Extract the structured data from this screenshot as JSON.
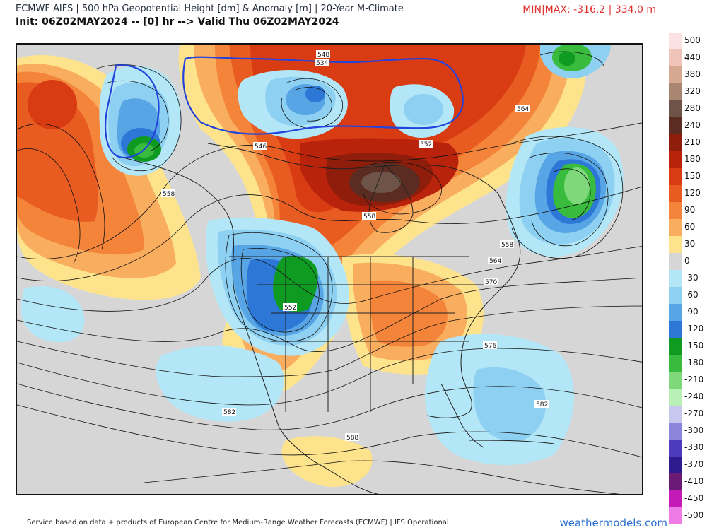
{
  "header": {
    "title": "ECMWF AIFS | 500 hPa Geopotential Height [dm] & Anomaly [m] | 20-Year M-Climate",
    "subtitle": "Init: 06Z02MAY2024 -- [0] hr --> Valid Thu 06Z02MAY2024",
    "minmax": "MIN|MAX: -316.2 | 334.0 m"
  },
  "legend": {
    "levels": [
      {
        "label": "500",
        "color": "#fbe1e1"
      },
      {
        "label": "440",
        "color": "#f0c4b8"
      },
      {
        "label": "380",
        "color": "#d5a88f"
      },
      {
        "label": "320",
        "color": "#a88671"
      },
      {
        "label": "280",
        "color": "#6e5448"
      },
      {
        "label": "240",
        "color": "#5b2d22"
      },
      {
        "label": "210",
        "color": "#8e1d0b"
      },
      {
        "label": "180",
        "color": "#b9230c"
      },
      {
        "label": "150",
        "color": "#d93b12"
      },
      {
        "label": "120",
        "color": "#e85c22"
      },
      {
        "label": "90",
        "color": "#f3843a"
      },
      {
        "label": "60",
        "color": "#f9ad5e"
      },
      {
        "label": "30",
        "color": "#fde48c"
      },
      {
        "label": "0",
        "color": "#d6d6d6"
      },
      {
        "label": "-30",
        "color": "#b3e6f6"
      },
      {
        "label": "-60",
        "color": "#8ed0f1"
      },
      {
        "label": "-90",
        "color": "#58a5e6"
      },
      {
        "label": "-120",
        "color": "#2d78d6"
      },
      {
        "label": "-150",
        "color": "#0f9a22"
      },
      {
        "label": "-180",
        "color": "#39bb3d"
      },
      {
        "label": "-210",
        "color": "#7fd97b"
      },
      {
        "label": "-240",
        "color": "#b9f0b6"
      },
      {
        "label": "-270",
        "color": "#c8c8ef"
      },
      {
        "label": "-300",
        "color": "#8c85dd"
      },
      {
        "label": "-330",
        "color": "#4c3cbd"
      },
      {
        "label": "-370",
        "color": "#2e1b8f"
      },
      {
        "label": "-410",
        "color": "#6b1a75"
      },
      {
        "label": "-450",
        "color": "#c41ab8"
      },
      {
        "label": "-500",
        "color": "#ef7be6"
      }
    ]
  },
  "contours": [
    {
      "label": "548"
    },
    {
      "label": "534"
    },
    {
      "label": "546"
    },
    {
      "label": "552"
    },
    {
      "label": "552"
    },
    {
      "label": "558"
    },
    {
      "label": "558"
    },
    {
      "label": "558"
    },
    {
      "label": "564"
    },
    {
      "label": "564"
    },
    {
      "label": "570"
    },
    {
      "label": "576"
    },
    {
      "label": "582"
    },
    {
      "label": "582"
    },
    {
      "label": "588"
    }
  ],
  "footer": {
    "credit": "Service based on data + products of European Centre for Medium-Range Weather Forecasts (ECMWF) | IFS Operational",
    "brand": "weathermodels.com"
  }
}
